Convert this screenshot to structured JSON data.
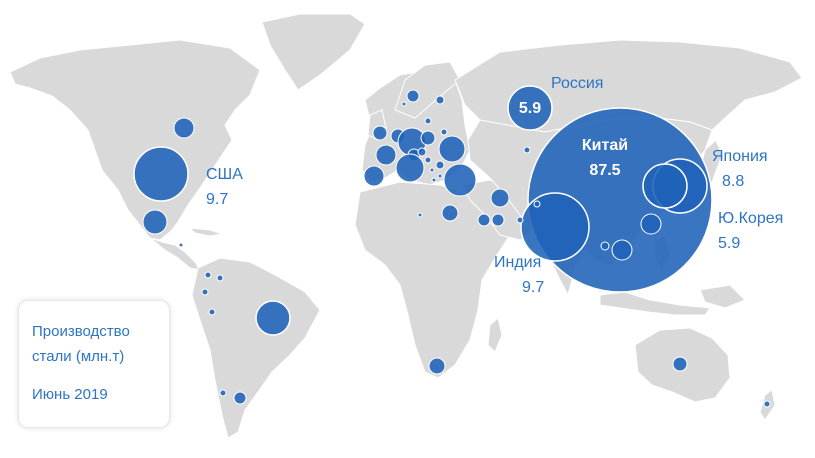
{
  "legend": {
    "line1": "Производство",
    "line2": "стали (млн.т)",
    "date": "Июнь 2019"
  },
  "countries": {
    "china": {
      "name": "Китай",
      "value": "87.5"
    },
    "usa": {
      "name": "США",
      "value": "9.7"
    },
    "russia": {
      "name": "Россия",
      "value": "5.9"
    },
    "india": {
      "name": "Индия",
      "value": "9.7"
    },
    "japan": {
      "name": "Япония",
      "value": "8.8"
    },
    "korea": {
      "name": "Ю.Корея",
      "value": "5.9"
    }
  },
  "colors": {
    "bubble": "#1f62b9",
    "land": "#d9d9d9",
    "label": "#2e74c4"
  }
}
